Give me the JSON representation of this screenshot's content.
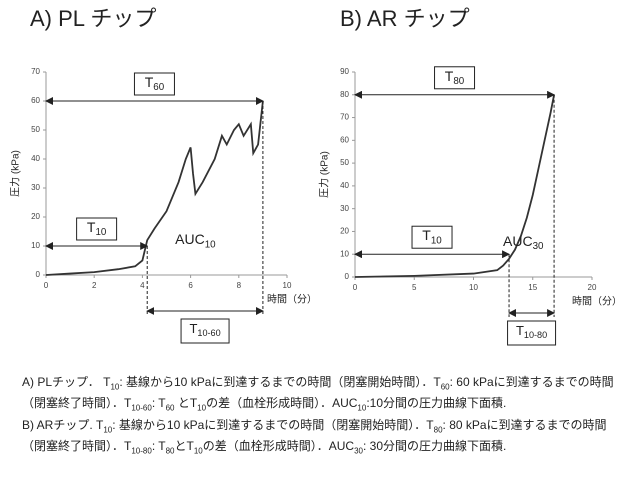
{
  "chart_data": [
    {
      "type": "line",
      "title": "A) PL チップ",
      "ylabel": "圧力 (kPa)",
      "xlabel": "時間（分）",
      "xlim": [
        0,
        10
      ],
      "xticks": [
        0,
        2,
        4,
        6,
        8,
        10
      ],
      "ylim": [
        0,
        70
      ],
      "yticks": [
        0,
        10,
        20,
        30,
        40,
        50,
        60,
        70
      ],
      "color": "#333333",
      "x": [
        0,
        1,
        2,
        3,
        3.7,
        4,
        4.2,
        4.5,
        5,
        5.5,
        5.8,
        6,
        6.1,
        6.2,
        6.5,
        7,
        7.3,
        7.5,
        7.8,
        8,
        8.2,
        8.5,
        8.6,
        8.8,
        9
      ],
      "values": [
        0,
        0.5,
        1,
        2,
        3,
        5,
        12,
        16,
        22,
        32,
        40,
        44,
        35,
        28,
        32,
        40,
        48,
        45,
        50,
        52,
        48,
        52,
        42,
        45,
        60
      ],
      "levels": [
        {
          "label": "T",
          "sub": "60",
          "x_end": 9,
          "y": 60
        },
        {
          "label": "T",
          "sub": "10",
          "x_end": 4.2,
          "y": 10
        }
      ],
      "spans": [
        {
          "label": "T",
          "sub": "10-60",
          "x_start": 4.2,
          "x_end": 9
        }
      ],
      "notes": [
        {
          "label": "AUC",
          "sub": "10",
          "x": 6.2,
          "y": 12
        }
      ]
    },
    {
      "type": "line",
      "title": "B) AR チップ",
      "ylabel": "圧力 (kPa)",
      "xlabel": "時間（分）",
      "xlim": [
        0,
        20
      ],
      "xticks": [
        0,
        5,
        10,
        15,
        20
      ],
      "ylim": [
        0,
        90
      ],
      "yticks": [
        0,
        10,
        20,
        30,
        40,
        50,
        60,
        70,
        80,
        90
      ],
      "color": "#333333",
      "x": [
        0,
        5,
        10,
        12,
        12.5,
        13,
        13.5,
        14,
        14.5,
        15,
        15.5,
        16,
        16.5,
        16.8
      ],
      "values": [
        0,
        0.5,
        1.5,
        3,
        5,
        8,
        12,
        18,
        26,
        36,
        48,
        60,
        72,
        80
      ],
      "levels": [
        {
          "label": "T",
          "sub": "80",
          "x_end": 16.8,
          "y": 80
        },
        {
          "label": "T",
          "sub": "10",
          "x_end": 13,
          "y": 10
        }
      ],
      "spans": [
        {
          "label": "T",
          "sub": "10-80",
          "x_start": 13,
          "x_end": 16.8
        }
      ],
      "notes": [
        {
          "label": "AUC",
          "sub": "30",
          "x": 14.2,
          "y": 15.4
        }
      ]
    }
  ],
  "caption": [
    [
      {
        "t": "A) PLチップ．  T"
      },
      {
        "sub": "10"
      },
      {
        "t": ": 基線から10 kPaに到達するまでの時間（閉塞開始時間）．T"
      },
      {
        "sub": "60"
      },
      {
        "t": ": 60 kPaに到達するまでの時間（閉塞終了時間）．T"
      },
      {
        "sub": "10-60"
      },
      {
        "t": ": T"
      },
      {
        "sub": "60"
      },
      {
        "t": " とT"
      },
      {
        "sub": "10"
      },
      {
        "t": "の差（血栓形成時間）．AUC"
      },
      {
        "sub": "10"
      },
      {
        "t": ":10分間の圧力曲線下面積."
      }
    ],
    [
      {
        "t": "B) ARチップ. T"
      },
      {
        "sub": "10"
      },
      {
        "t": ": 基線から10 kPaに到達するまでの時間（閉塞開始時間）．T"
      },
      {
        "sub": "80"
      },
      {
        "t": ": 80 kPaに到達するまでの時間（閉塞終了時間）．T"
      },
      {
        "sub": "10-80"
      },
      {
        "t": ": T"
      },
      {
        "sub": "80"
      },
      {
        "t": "とT"
      },
      {
        "sub": "10"
      },
      {
        "t": "の差（血栓形成時間）．AUC"
      },
      {
        "sub": "30"
      },
      {
        "t": ": 30分間の圧力曲線下面積."
      }
    ]
  ]
}
